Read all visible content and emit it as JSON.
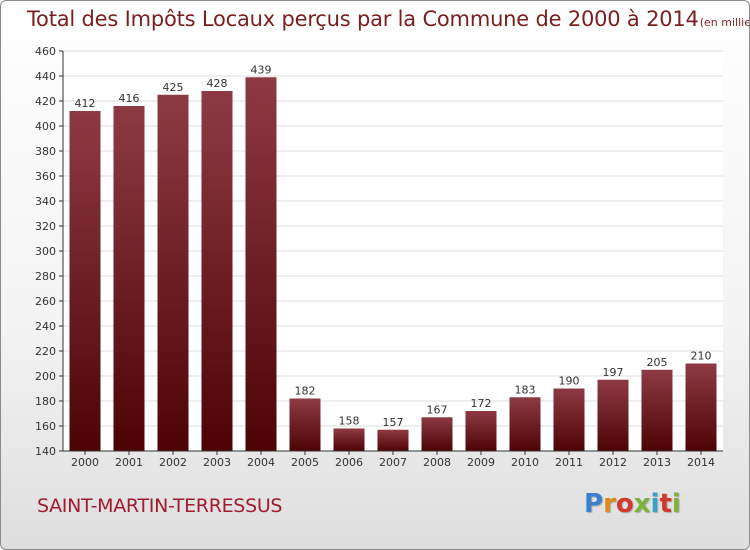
{
  "title": "Total des Impôts Locaux perçus par la Commune de 2000 à 2014",
  "subtitle": "(en milliers d'€)",
  "commune": "SAINT-MARTIN-TERRESSUS",
  "logo": {
    "text": "Proxiti"
  },
  "colors": {
    "bar_top": "#8e3a44",
    "bar_bottom": "#4d0306",
    "title": "#7a1f1f",
    "commune": "#a01c2e",
    "grid": "#dddddd"
  },
  "chart_data": {
    "type": "bar",
    "categories": [
      "2000",
      "2001",
      "2002",
      "2003",
      "2004",
      "2005",
      "2006",
      "2007",
      "2008",
      "2009",
      "2010",
      "2011",
      "2012",
      "2013",
      "2014"
    ],
    "values": [
      412,
      416,
      425,
      428,
      439,
      182,
      158,
      157,
      167,
      172,
      183,
      190,
      197,
      205,
      210
    ],
    "ylim": [
      140,
      460
    ],
    "yticks": [
      140,
      160,
      180,
      200,
      220,
      240,
      260,
      280,
      300,
      320,
      340,
      360,
      380,
      400,
      420,
      440,
      460
    ],
    "grid": true,
    "data_labels": true
  }
}
